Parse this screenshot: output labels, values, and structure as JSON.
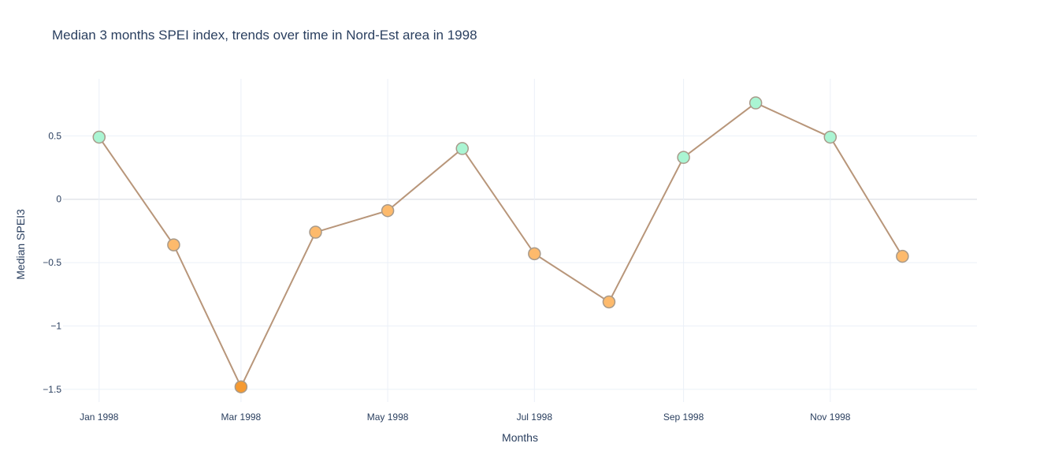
{
  "chart_data": {
    "type": "line",
    "title": "Median 3 months SPEI index, trends over time in Nord-Est area in 1998",
    "xlabel": "Months",
    "ylabel": "Median SPEI3",
    "x": [
      "1998-01-01",
      "1998-02-01",
      "1998-03-01",
      "1998-04-01",
      "1998-05-01",
      "1998-06-01",
      "1998-07-01",
      "1998-08-01",
      "1998-09-01",
      "1998-10-01",
      "1998-11-01",
      "1998-12-01"
    ],
    "x_tick_labels": [
      "Jan 1998",
      "Mar 1998",
      "May 1998",
      "Jul 1998",
      "Sep 1998",
      "Nov 1998"
    ],
    "x_range": [
      "1997-12-17",
      "1999-01-01"
    ],
    "series": [
      {
        "values": [
          0.49,
          -0.36,
          -1.48,
          -0.26,
          -0.09,
          0.4,
          -0.43,
          -0.81,
          0.33,
          0.76,
          0.49,
          -0.45
        ]
      }
    ],
    "y_ticks": [
      0.5,
      0,
      -0.5,
      -1,
      -1.5
    ],
    "y_tick_labels": [
      "0.5",
      "0",
      "−0.5",
      "−1",
      "−1.5"
    ],
    "ylim": [
      -1.6,
      0.95
    ],
    "grid": true,
    "colors": {
      "line": "#b8967a",
      "marker_positive": "#aaf5d3",
      "marker_negative": "#fdba6c",
      "marker_extreme": "#f59a32",
      "marker_border": "#a89a8a",
      "grid": "#ebf0f8",
      "zeroline": "#e2e5ea"
    }
  }
}
